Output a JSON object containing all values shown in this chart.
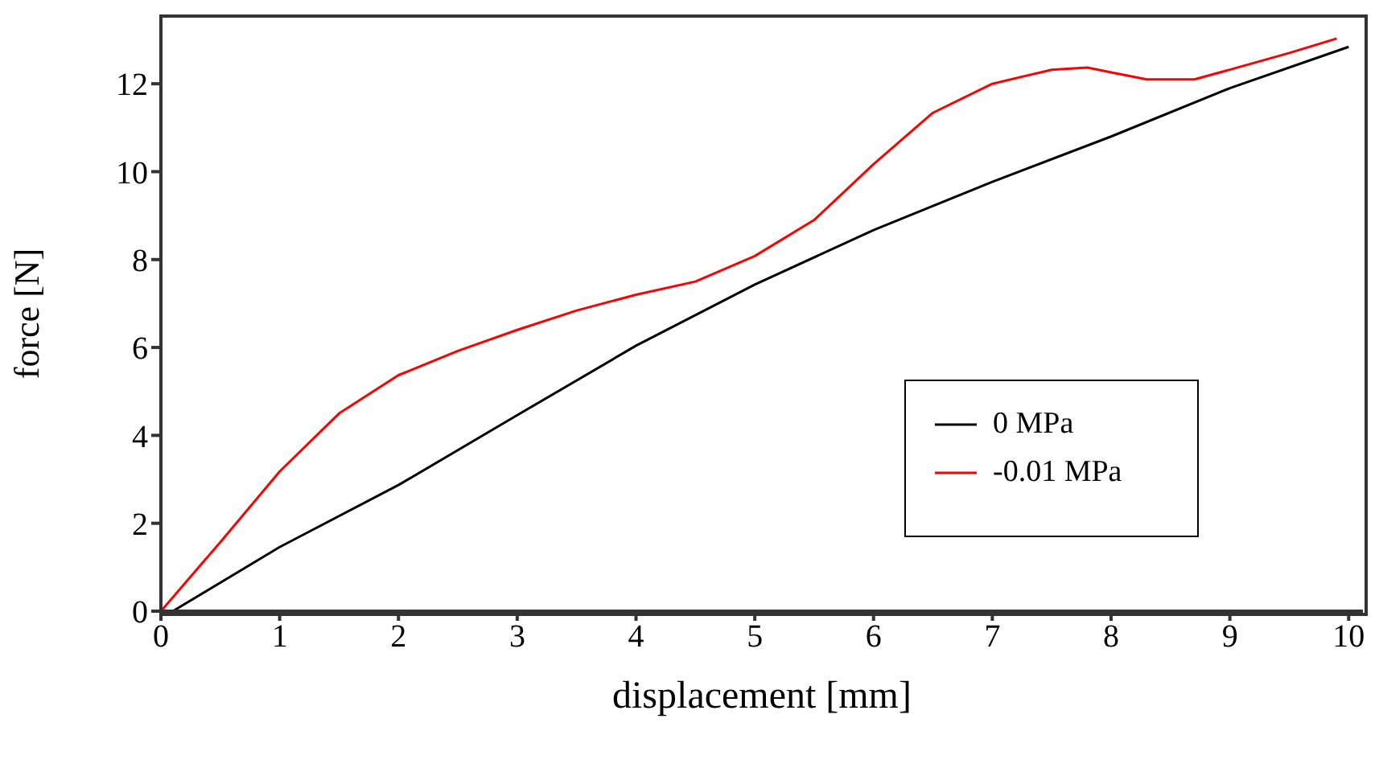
{
  "chart_data": {
    "type": "line",
    "xlabel": "displacement [mm]",
    "ylabel": "force [N]",
    "xlim": [
      0,
      10.12
    ],
    "xticks": [
      0,
      1,
      2,
      3,
      4,
      5,
      6,
      7,
      8,
      9,
      10
    ],
    "ylim": [
      0,
      13.54
    ],
    "yticks": [
      0,
      2,
      4,
      6,
      8,
      10,
      12
    ],
    "grid": false,
    "legend": "right",
    "marker": "none",
    "line_style": "solid",
    "series": [
      {
        "name": "0 MPa",
        "color": "#000000",
        "x": [
          0.1,
          1,
          2,
          3,
          4,
          5,
          6,
          7,
          8,
          9,
          10
        ],
        "values": [
          0,
          1.46,
          2.87,
          4.46,
          6.04,
          7.43,
          8.67,
          9.77,
          10.8,
          11.9,
          12.84
        ]
      },
      {
        "name": "-0.01 MPa",
        "color": "#ff0000",
        "x": [
          0,
          0.5,
          1,
          1.5,
          2,
          2.5,
          3,
          3.5,
          4,
          4.5,
          5,
          5.5,
          6,
          6.5,
          7,
          7.5,
          7.8,
          8,
          8.3,
          8.7,
          9,
          9.5,
          9.9
        ],
        "values": [
          0,
          1.57,
          3.18,
          4.5,
          5.37,
          5.92,
          6.4,
          6.84,
          7.2,
          7.5,
          8.08,
          8.9,
          10.17,
          11.34,
          12.0,
          12.32,
          12.37,
          12.26,
          12.1,
          12.1,
          12.32,
          12.7,
          13.03
        ]
      }
    ]
  }
}
